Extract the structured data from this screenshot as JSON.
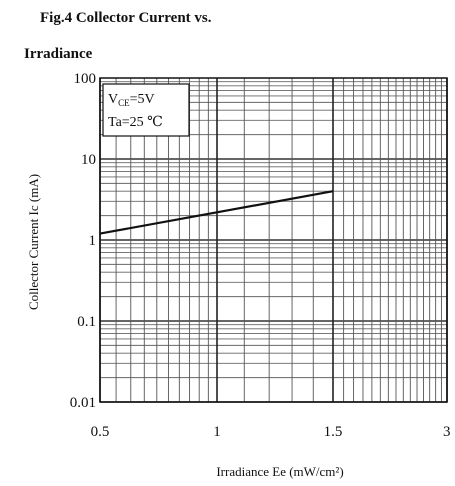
{
  "title_line1": "Fig.4 Collector Current vs.",
  "title_line2": "Irradiance",
  "chart_data": {
    "type": "line",
    "title": "Fig.4 Collector Current vs. Irradiance",
    "xlabel": "Irradiance Ee (mW/cm²)",
    "ylabel": "Collector Current Ic (mA)",
    "xscale": "log",
    "yscale": "log",
    "xlim": [
      0.5,
      3
    ],
    "ylim": [
      0.01,
      100
    ],
    "x_ticks": [
      "0.5",
      "1",
      "1.5",
      "3"
    ],
    "y_ticks": [
      "100",
      "10",
      "1",
      "0.1",
      "0.01"
    ],
    "grid": true,
    "conditions": {
      "vce": "VCE=5V",
      "ta": "Ta=25 ℃"
    },
    "series": [
      {
        "x": [
          0.5,
          1.5
        ],
        "y": [
          1.2,
          4.0
        ]
      }
    ]
  }
}
